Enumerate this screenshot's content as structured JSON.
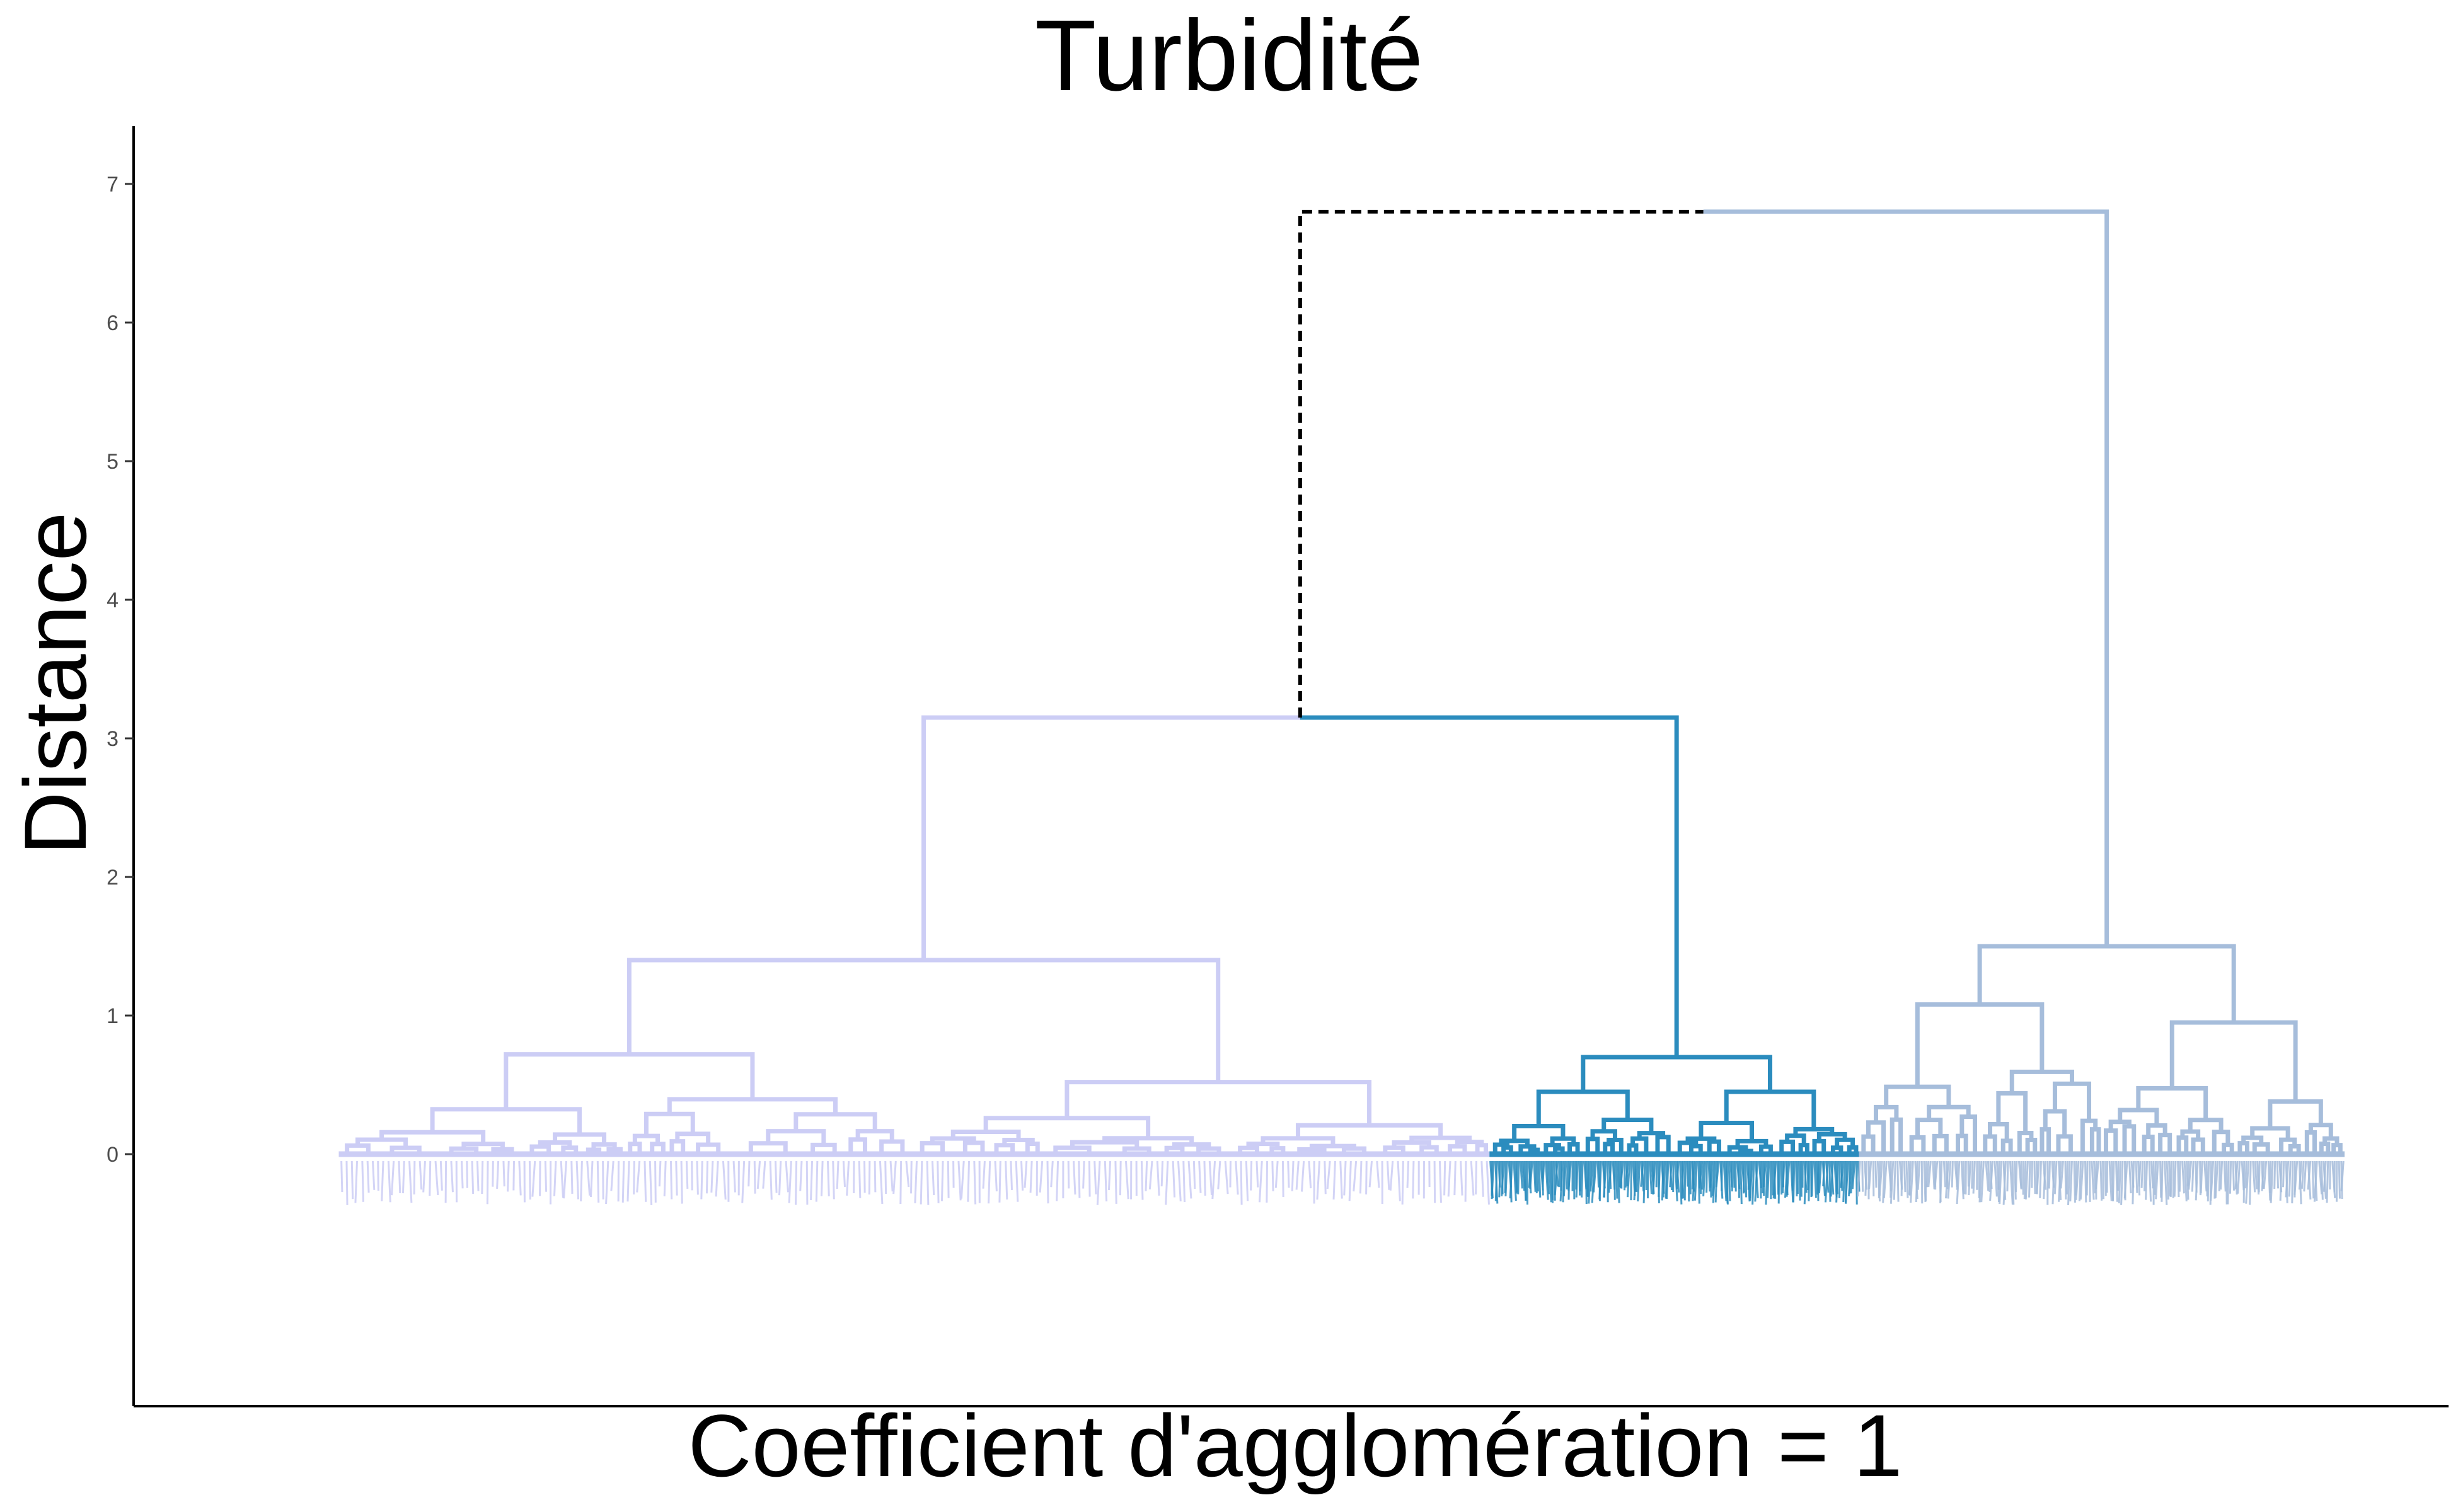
{
  "chart_data": {
    "type": "dendrogram",
    "title": "Turbidité",
    "xlabel": "Coefficient d'agglomération = 1",
    "ylabel": "Distance",
    "ylim": [
      -1.8,
      7.2
    ],
    "y_ticks": [
      0,
      1,
      2,
      3,
      4,
      5,
      6,
      7
    ],
    "grid": false,
    "legend": "none",
    "root_height": 6.8,
    "clusters": [
      {
        "id": "cluster-1",
        "color": "#cccdf5",
        "leaf_span": [
          0.05,
          0.595
        ],
        "merge_height": 3.15,
        "sub_merges": [
          {
            "height": 1.4,
            "left": 0.2,
            "right": 0.52
          },
          {
            "height": 0.72,
            "left": 0.1,
            "right": 0.29
          },
          {
            "height": 0.52,
            "left": 0.43,
            "right": 0.62
          }
        ]
      },
      {
        "id": "cluster-2",
        "color": "#2b8cbe",
        "leaf_span": [
          0.595,
          0.77
        ],
        "merge_height": 0.7,
        "sub_merges": [
          {
            "height": 0.45,
            "left": 0.2,
            "right": 0.55
          },
          {
            "height": 0.45,
            "left": 0.6,
            "right": 0.86
          }
        ]
      },
      {
        "id": "cluster-3",
        "color": "#a6bddb",
        "leaf_span": [
          0.77,
          1.0
        ],
        "merge_height": 1.5,
        "sub_merges": [
          {
            "height": 1.08,
            "left": 0.2,
            "right": 0.55
          },
          {
            "height": 0.95,
            "left": 0.6,
            "right": 0.87
          }
        ]
      }
    ],
    "top_merges": [
      {
        "height": 3.15,
        "left": "cluster-1",
        "right": "cluster-2",
        "color": "#2b8cbe"
      },
      {
        "height": 6.8,
        "left": "merge-1-2",
        "right": "cluster-3",
        "color": "#000000",
        "style": "dashed"
      }
    ]
  }
}
